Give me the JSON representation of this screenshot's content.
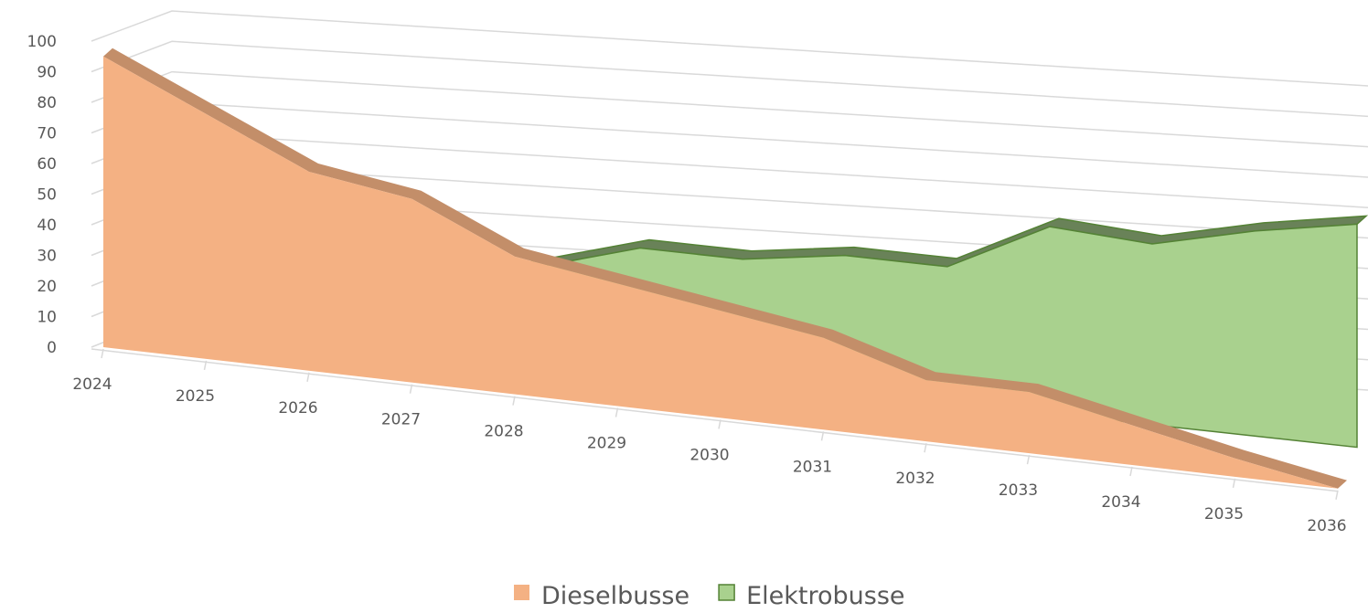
{
  "chart_data": {
    "type": "area3d",
    "categories": [
      "2024",
      "2025",
      "2026",
      "2027",
      "2028",
      "2029",
      "2030",
      "2031",
      "2032",
      "2033",
      "2034",
      "2035",
      "2036"
    ],
    "series": [
      {
        "name": "Dieselbusse",
        "color": "#f4b183",
        "values": [
          95,
          80,
          65,
          60,
          45,
          40,
          35,
          30,
          20,
          20,
          13,
          6,
          0
        ]
      },
      {
        "name": "Elektrobusse",
        "color": "#a9d18e",
        "values": [
          0,
          5,
          15,
          20,
          30,
          40,
          40,
          45,
          45,
          62,
          60,
          68,
          74
        ]
      }
    ],
    "ylim": [
      0,
      100
    ],
    "yticks": [
      0,
      10,
      20,
      30,
      40,
      50,
      60,
      70,
      80,
      90,
      100
    ],
    "grid": true,
    "legend": "bottom"
  }
}
